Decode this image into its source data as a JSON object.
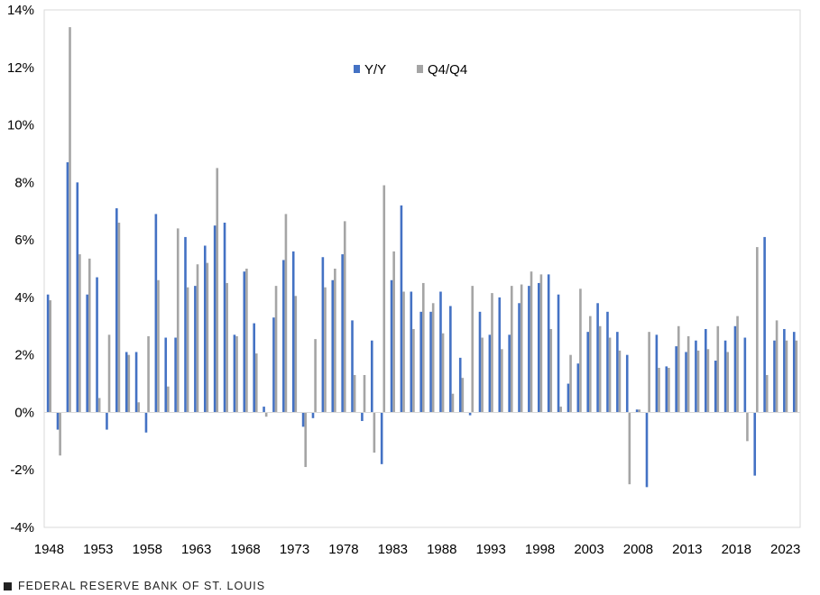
{
  "chart_data": {
    "type": "bar",
    "title": "",
    "xlabel": "",
    "ylabel": "",
    "ylim": [
      -4,
      14
    ],
    "y_ticks": [
      "-4%",
      "-2%",
      "0%",
      "2%",
      "4%",
      "6%",
      "8%",
      "10%",
      "12%",
      "14%"
    ],
    "x_tick_labels": [
      "1948",
      "1953",
      "1958",
      "1963",
      "1968",
      "1973",
      "1978",
      "1983",
      "1988",
      "1993",
      "1998",
      "2003",
      "2008",
      "2013",
      "2018",
      "2023"
    ],
    "grid": "horizontal",
    "legend": "top-center",
    "categories": [
      "1948",
      "1949",
      "1950",
      "1951",
      "1952",
      "1953",
      "1954",
      "1955",
      "1956",
      "1957",
      "1958",
      "1959",
      "1960",
      "1961",
      "1962",
      "1963",
      "1964",
      "1965",
      "1966",
      "1967",
      "1968",
      "1969",
      "1970",
      "1971",
      "1972",
      "1973",
      "1974",
      "1975",
      "1976",
      "1977",
      "1978",
      "1979",
      "1980",
      "1981",
      "1982",
      "1983",
      "1984",
      "1985",
      "1986",
      "1987",
      "1988",
      "1989",
      "1990",
      "1991",
      "1992",
      "1993",
      "1994",
      "1995",
      "1996",
      "1997",
      "1998",
      "1999",
      "2000",
      "2001",
      "2002",
      "2003",
      "2004",
      "2005",
      "2006",
      "2007",
      "2008",
      "2009",
      "2010",
      "2011",
      "2012",
      "2013",
      "2014",
      "2015",
      "2016",
      "2017",
      "2018",
      "2019",
      "2020",
      "2021",
      "2022",
      "2023",
      "2024"
    ],
    "series": [
      {
        "name": "Y/Y",
        "color": "#4472C4",
        "values": [
          4.1,
          -0.6,
          8.7,
          8.0,
          4.1,
          4.7,
          -0.6,
          7.1,
          2.1,
          2.1,
          -0.7,
          6.9,
          2.6,
          2.6,
          6.1,
          4.4,
          5.8,
          6.5,
          6.6,
          2.7,
          4.9,
          3.1,
          0.2,
          3.3,
          5.3,
          5.6,
          -0.5,
          -0.2,
          5.4,
          4.6,
          5.5,
          3.2,
          -0.3,
          2.5,
          -1.8,
          4.6,
          7.2,
          4.2,
          3.5,
          3.5,
          4.2,
          3.7,
          1.9,
          -0.1,
          3.5,
          2.7,
          4.0,
          2.7,
          3.8,
          4.4,
          4.5,
          4.8,
          4.1,
          1.0,
          1.7,
          2.8,
          3.8,
          3.5,
          2.8,
          2.0,
          0.1,
          -2.6,
          2.7,
          1.6,
          2.3,
          2.1,
          2.5,
          2.9,
          1.8,
          2.5,
          3.0,
          2.6,
          -2.2,
          6.1,
          2.5,
          2.9,
          2.8
        ]
      },
      {
        "name": "Q4/Q4",
        "color": "#A5A5A5",
        "values": [
          3.9,
          -1.5,
          13.4,
          5.5,
          5.35,
          0.5,
          2.7,
          6.6,
          2.0,
          0.35,
          2.65,
          4.6,
          0.9,
          6.4,
          4.35,
          5.15,
          5.2,
          8.5,
          4.5,
          2.65,
          5.0,
          2.05,
          -0.15,
          4.4,
          6.9,
          4.05,
          -1.9,
          2.55,
          4.35,
          5.0,
          6.65,
          1.3,
          1.3,
          -1.4,
          7.9,
          5.6,
          4.2,
          2.9,
          4.5,
          3.8,
          2.75,
          0.65,
          1.2,
          4.4,
          2.6,
          4.15,
          2.2,
          4.4,
          4.45,
          4.9,
          4.8,
          2.9,
          0.2,
          2.0,
          4.3,
          3.35,
          3.0,
          2.6,
          2.15,
          -2.5,
          0.1,
          2.8,
          1.55,
          1.55,
          3.0,
          2.65,
          2.15,
          2.2,
          3.0,
          2.1,
          3.35,
          -1.0,
          5.75,
          1.3,
          3.2,
          2.5,
          2.5
        ]
      }
    ]
  },
  "footer": {
    "text": "FEDERAL RESERVE BANK OF ST. LOUIS"
  }
}
